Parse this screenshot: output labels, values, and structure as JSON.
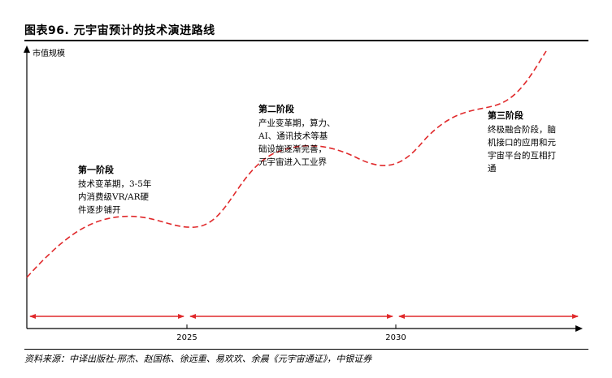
{
  "figure": {
    "title": "图表96. 元宇宙预计的技术演进路线",
    "source": "资料来源：中译出版社-邢杰、赵国栋、徐远重、易欢欢、余晨《元宇宙通证》，中银证券"
  },
  "axes": {
    "y_label": "市值规模",
    "x_ticks": [
      "2025",
      "2030"
    ]
  },
  "stages": [
    {
      "title": "第一阶段",
      "lines": [
        "技术变革期，3-5年",
        "内消费级VR/AR硬",
        "件逐步铺开"
      ]
    },
    {
      "title": "第二阶段",
      "lines": [
        "产业变革期，算力、",
        "AI、通讯技术等基",
        "础设施逐渐完善，",
        "元宇宙进入工业界"
      ]
    },
    {
      "title": "第三阶段",
      "lines": [
        "终极融合阶段，脑",
        "机接口的应用和元",
        "宇宙平台的互相打",
        "通"
      ]
    }
  ],
  "colors": {
    "curve": "#e0292b",
    "arrow": "#e0292b",
    "axis": "#000000"
  }
}
